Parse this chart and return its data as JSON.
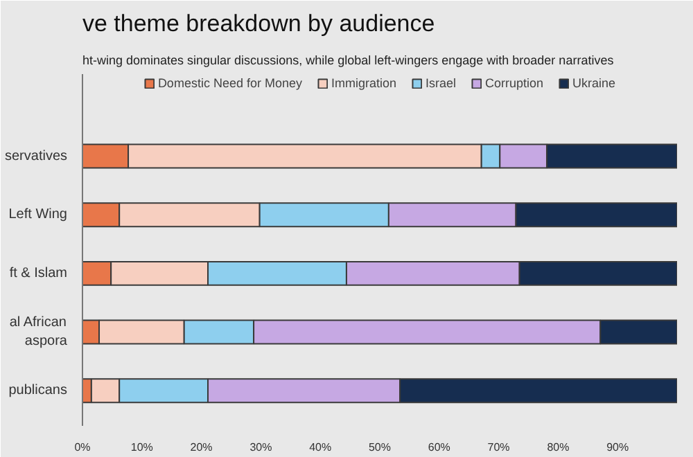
{
  "chart_data": {
    "type": "bar",
    "orientation": "horizontal",
    "stacked": true,
    "title": "ve theme breakdown by audience",
    "subtitle": "ht-wing dominates singular discussions, while global left-wingers engage with broader narratives",
    "categories": [
      "servatives",
      "Left Wing",
      "ft & Islam",
      "al African\naspora",
      "publicans"
    ],
    "series": [
      {
        "name": "Domestic Need for Money",
        "color": "#e8774a",
        "values": [
          7.7,
          6.2,
          4.8,
          2.8,
          1.5
        ]
      },
      {
        "name": "Immigration",
        "color": "#f7cfc0",
        "values": [
          59.4,
          23.6,
          16.3,
          14.3,
          4.7
        ]
      },
      {
        "name": "Israel",
        "color": "#8ecfee",
        "values": [
          3.1,
          21.7,
          23.3,
          11.7,
          14.9
        ]
      },
      {
        "name": "Corruption",
        "color": "#c6a8e3",
        "values": [
          7.9,
          21.4,
          29.1,
          58.3,
          32.3
        ]
      },
      {
        "name": "Ukraine",
        "color": "#162d50",
        "values": [
          21.9,
          27.1,
          26.5,
          12.9,
          46.6
        ]
      }
    ],
    "xlim": [
      0,
      100
    ],
    "xticks": [
      {
        "value": 0,
        "label": "0%"
      },
      {
        "value": 10,
        "label": "10%"
      },
      {
        "value": 20,
        "label": "20%"
      },
      {
        "value": 30,
        "label": "30%"
      },
      {
        "value": 40,
        "label": "40%"
      },
      {
        "value": 50,
        "label": "50%"
      },
      {
        "value": 60,
        "label": "60%"
      },
      {
        "value": 70,
        "label": "70%"
      },
      {
        "value": 80,
        "label": "80%"
      },
      {
        "value": 90,
        "label": "90%"
      }
    ],
    "legend": "top"
  }
}
